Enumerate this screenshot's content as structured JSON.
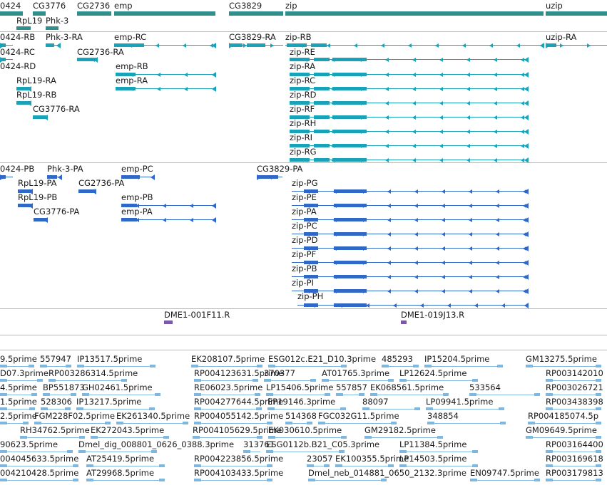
{
  "colors": {
    "gene": "#2f8f8d",
    "transcript": "#1aa3b8",
    "protein": "#2f68c8",
    "clone": "#7a5aa8",
    "est": "#7fb7df",
    "separator": "#b8b8b8",
    "text": "#1a1a1a"
  },
  "tracks": {
    "genes": {
      "labels": [
        "0424",
        "CG3776",
        "CG2736",
        "emp",
        "CG3829",
        "zip",
        "uzip",
        "RpL19",
        "Phk-3"
      ]
    },
    "transcripts": {
      "labels": [
        "0424-RB",
        "Phk-3-RA",
        "emp-RC",
        "CG3829-RA",
        "zip-RB",
        "uzip-RA",
        "0424-RC",
        "CG2736-RA",
        "zip-RE",
        "0424-RD",
        "emp-RB",
        "zip-RA",
        "RpL19-RA",
        "emp-RA",
        "zip-RC",
        "RpL19-RB",
        "zip-RD",
        "CG3776-RA",
        "zip-RF",
        "zip-RH",
        "zip-RI",
        "zip-RG"
      ]
    },
    "proteins": {
      "labels": [
        "0424-PB",
        "Phk-3-PA",
        "emp-PC",
        "CG3829-PA",
        "RpL19-PA",
        "CG2736-PA",
        "zip-PG",
        "RpL19-PB",
        "emp-PB",
        "zip-PE",
        "CG3776-PA",
        "emp-PA",
        "zip-PA",
        "zip-PC",
        "zip-PD",
        "zip-PF",
        "zip-PB",
        "zip-PI",
        "zip-PH"
      ]
    },
    "clones": {
      "labels": [
        "DME1-001F11.R",
        "DME1-019J13.R"
      ]
    },
    "ests": {
      "labels": [
        "9.5prime",
        "557947",
        "IP13517.5prime",
        "EK208107.5prime",
        "ESG012c.E21_D10.3prime",
        "485293",
        "IP15204.5prime",
        "GM13275.5prime",
        "D07.3prime",
        "RP003286314.5prime",
        "RP004123631.5prime",
        "370377",
        "AT01765.3prime",
        "LP12624.5prime",
        "RP003142010",
        "4.5prime",
        "BP551873",
        "GH02461.5prime",
        "RE06023.5prime",
        "LP15406.5prime",
        "557857",
        "EK068561.5prime",
        "533564",
        "RP003026721",
        "1.5prime",
        "528306",
        "IP13217.5prime",
        "RP004277644.5prime",
        "EP19146.3prime",
        "88097",
        "LP09941.5prime",
        "RP003438398",
        "2.5prime",
        "FGM228F02.5prime",
        "EK261340.5prime",
        "RP004055142.5prime",
        "514368",
        "FGC032G11.5prime",
        "348854",
        "RP004185074.5p",
        "RH34762.5prime",
        "EK272043.5prime",
        "RP004105629.5prime",
        "EK030610.5prime",
        "GM29182.5prime",
        "GM09649.5prime",
        "90623.5prime",
        "Dmel_dig_008801_0626_0388.3prime",
        "313761",
        "ESG0112b.B21_C05.3prime",
        "LP11384.5prime",
        "RP003164400",
        "004045633.5prime",
        "AT25419.5prime",
        "RP004223856.5prime",
        "23057",
        "EK100355.5prime",
        "LP14503.5prime",
        "RP003169618",
        "004210428.5prime",
        "AT29968.5prime",
        "RP004103433.5prime",
        "Dmel_neb_014881_0650_2132.3prime",
        "EN09747.5prime",
        "RP003179813"
      ]
    }
  }
}
